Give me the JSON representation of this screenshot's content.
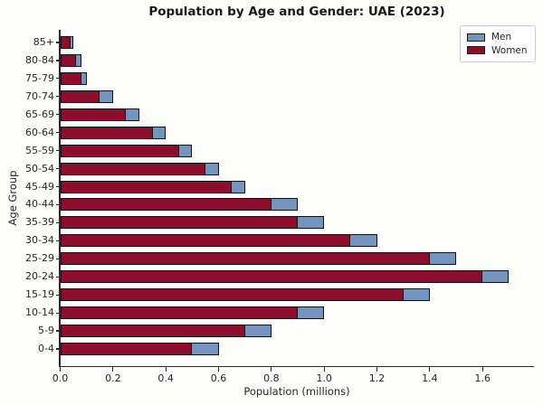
{
  "chart_data": {
    "type": "bar",
    "orientation": "horizontal",
    "style": "overlay",
    "note": "Both series start at 0 and overlap; Men bars are drawn behind Women bars so only the Men tip beyond the Women value is visible in blue.",
    "title": "Population by Age and Gender: UAE (2023)",
    "xlabel": "Population (millions)",
    "ylabel": "Age Group",
    "categories": [
      "85+",
      "80-84",
      "75-79",
      "70-74",
      "65-69",
      "60-64",
      "55-59",
      "50-54",
      "45-49",
      "40-44",
      "35-39",
      "30-34",
      "25-29",
      "20-24",
      "15-19",
      "10-14",
      "5-9",
      "0-4"
    ],
    "series": [
      {
        "name": "Men",
        "color": "#7394BD",
        "edge_color": "#101018",
        "values": [
          0.05,
          0.08,
          0.1,
          0.2,
          0.3,
          0.4,
          0.5,
          0.6,
          0.7,
          0.9,
          1.0,
          1.2,
          1.5,
          1.7,
          1.4,
          1.0,
          0.8,
          0.6
        ]
      },
      {
        "name": "Women",
        "color": "#8B0E2C",
        "edge_color": "#101018",
        "values": [
          0.04,
          0.06,
          0.08,
          0.15,
          0.25,
          0.35,
          0.45,
          0.55,
          0.65,
          0.8,
          0.9,
          1.1,
          1.4,
          1.6,
          1.3,
          0.9,
          0.7,
          0.5
        ]
      }
    ],
    "x_ticks": [
      0.0,
      0.2,
      0.4,
      0.6,
      0.8,
      1.0,
      1.2,
      1.4,
      1.6
    ],
    "xlim": [
      0,
      1.79
    ],
    "grid": false,
    "legend": {
      "position": "upper right",
      "entries": [
        "Men",
        "Women"
      ]
    }
  }
}
